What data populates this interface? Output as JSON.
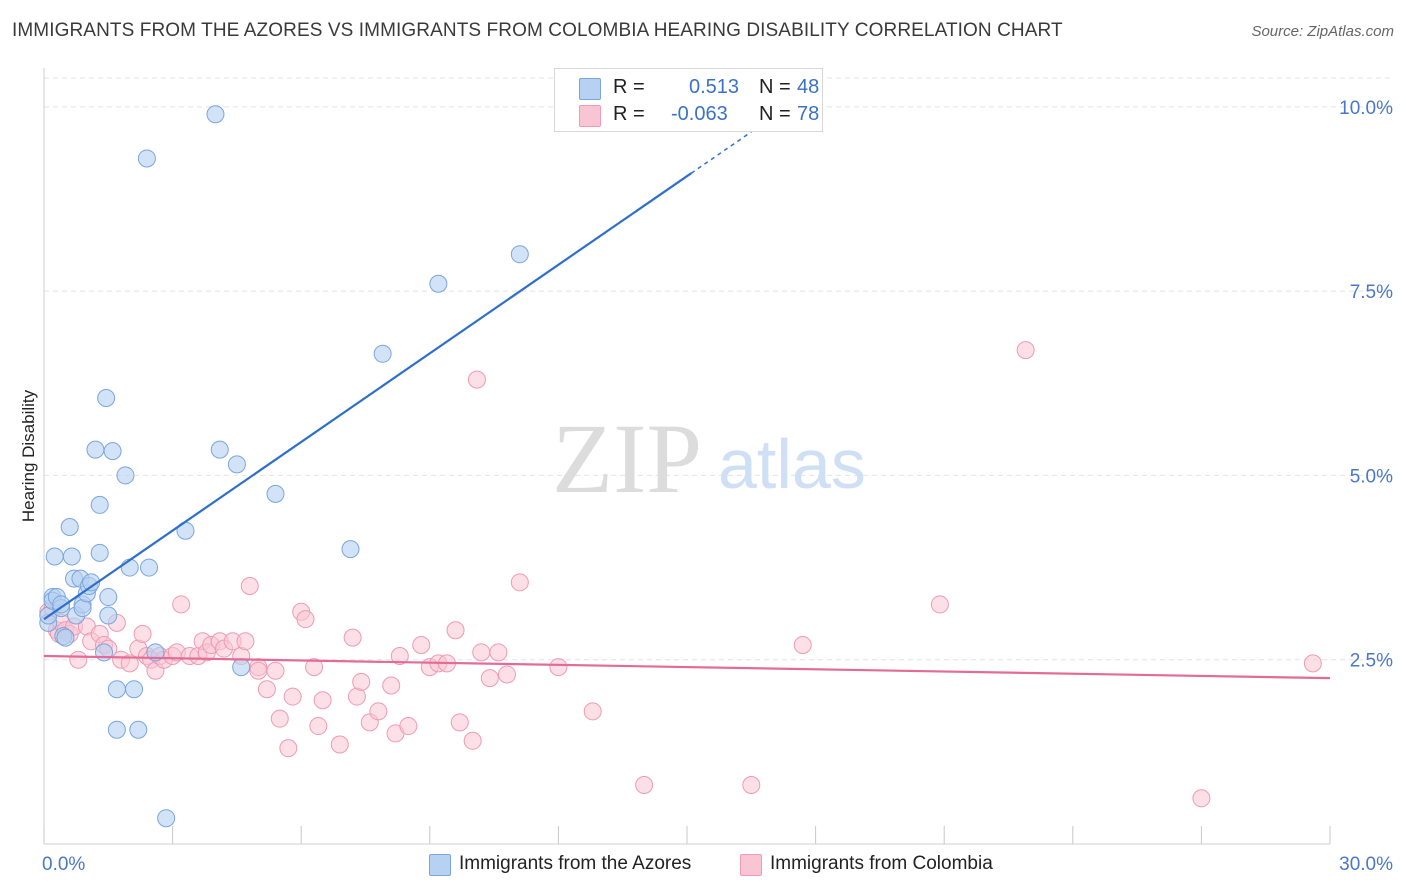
{
  "title": "IMMIGRANTS FROM THE AZORES VS IMMIGRANTS FROM COLOMBIA HEARING DISABILITY CORRELATION CHART",
  "source": "Source: ZipAtlas.com",
  "watermark": {
    "zip": "ZIP",
    "atlas": "atlas"
  },
  "legend": {
    "azores": {
      "r_label": "R =",
      "r_value": "0.513",
      "n_label": "N =",
      "n_value": "48"
    },
    "colombia": {
      "r_label": "R =",
      "r_value": "-0.063",
      "n_label": "N =",
      "n_value": "78"
    }
  },
  "bottom_legend": {
    "azores": "Immigrants from the Azores",
    "colombia": "Immigrants from Colombia"
  },
  "colors": {
    "azores_fill": "#b6d1f2",
    "azores_stroke": "#7aa6dc",
    "azores_line": "#2f6fcc",
    "colombia_fill": "#f9c5d4",
    "colombia_stroke": "#ee9bb5",
    "colombia_line": "#e36b96",
    "tick": "#4a78c8",
    "grid": "#e3e3e3"
  },
  "chart_data": {
    "type": "scatter",
    "ylabel": "Hearing Disability",
    "xlim": [
      0,
      30
    ],
    "ylim": [
      0,
      10.5
    ],
    "x_tick_labels": [
      {
        "v": 0,
        "label": "0.0%"
      },
      {
        "v": 30,
        "label": "30.0%"
      }
    ],
    "y_tick_labels": [
      {
        "v": 2.5,
        "label": "2.5%"
      },
      {
        "v": 5.0,
        "label": "5.0%"
      },
      {
        "v": 7.5,
        "label": "7.5%"
      },
      {
        "v": 10.0,
        "label": "10.0%"
      }
    ],
    "series": [
      {
        "name": "Immigrants from the Azores",
        "r": 0.513,
        "n": 48,
        "trend": {
          "x0": 0.0,
          "y0": 3.05,
          "x1": 15.1,
          "y1": 9.1,
          "dash_to_x": 16.5,
          "dash_to_y": 9.66
        },
        "points": [
          [
            0.1,
            3.0
          ],
          [
            0.1,
            3.1
          ],
          [
            0.2,
            3.35
          ],
          [
            0.2,
            3.3
          ],
          [
            0.25,
            3.9
          ],
          [
            0.3,
            3.35
          ],
          [
            0.4,
            3.2
          ],
          [
            0.4,
            3.25
          ],
          [
            0.45,
            2.82
          ],
          [
            0.5,
            2.8
          ],
          [
            0.6,
            4.3
          ],
          [
            0.65,
            3.9
          ],
          [
            0.7,
            3.6
          ],
          [
            0.75,
            3.1
          ],
          [
            0.85,
            3.6
          ],
          [
            0.9,
            3.25
          ],
          [
            0.9,
            3.2
          ],
          [
            1.0,
            3.4
          ],
          [
            1.05,
            3.5
          ],
          [
            1.1,
            3.55
          ],
          [
            1.2,
            5.35
          ],
          [
            1.3,
            4.6
          ],
          [
            1.3,
            3.95
          ],
          [
            1.4,
            2.6
          ],
          [
            1.45,
            6.05
          ],
          [
            1.5,
            3.1
          ],
          [
            1.5,
            3.35
          ],
          [
            1.6,
            5.33
          ],
          [
            1.7,
            2.1
          ],
          [
            1.7,
            1.55
          ],
          [
            1.9,
            5.0
          ],
          [
            2.0,
            3.75
          ],
          [
            2.1,
            2.1
          ],
          [
            2.2,
            1.55
          ],
          [
            2.4,
            9.3
          ],
          [
            2.45,
            3.75
          ],
          [
            2.6,
            2.6
          ],
          [
            2.85,
            0.35
          ],
          [
            3.3,
            4.25
          ],
          [
            4.0,
            9.9
          ],
          [
            4.1,
            5.35
          ],
          [
            4.5,
            5.15
          ],
          [
            4.6,
            2.4
          ],
          [
            5.4,
            4.75
          ],
          [
            7.15,
            4.0
          ],
          [
            7.9,
            6.65
          ],
          [
            9.2,
            7.6
          ],
          [
            11.1,
            8.0
          ]
        ]
      },
      {
        "name": "Immigrants from Colombia",
        "r": -0.063,
        "n": 78,
        "trend": {
          "x0": 0.0,
          "y0": 2.55,
          "x1": 30.0,
          "y1": 2.25
        },
        "points": [
          [
            0.1,
            3.15
          ],
          [
            0.2,
            3.2
          ],
          [
            0.3,
            2.9
          ],
          [
            0.35,
            2.85
          ],
          [
            0.4,
            3.0
          ],
          [
            0.5,
            2.9
          ],
          [
            0.6,
            2.85
          ],
          [
            0.7,
            2.95
          ],
          [
            0.8,
            2.5
          ],
          [
            1.0,
            2.95
          ],
          [
            1.1,
            2.75
          ],
          [
            1.3,
            2.85
          ],
          [
            1.4,
            2.7
          ],
          [
            1.5,
            2.65
          ],
          [
            1.7,
            3.0
          ],
          [
            1.8,
            2.5
          ],
          [
            2.0,
            2.45
          ],
          [
            2.2,
            2.65
          ],
          [
            2.3,
            2.85
          ],
          [
            2.4,
            2.55
          ],
          [
            2.5,
            2.5
          ],
          [
            2.6,
            2.35
          ],
          [
            2.7,
            2.55
          ],
          [
            2.8,
            2.5
          ],
          [
            3.0,
            2.55
          ],
          [
            3.1,
            2.6
          ],
          [
            3.2,
            3.25
          ],
          [
            3.4,
            2.55
          ],
          [
            3.6,
            2.55
          ],
          [
            3.7,
            2.75
          ],
          [
            3.8,
            2.6
          ],
          [
            3.9,
            2.7
          ],
          [
            4.1,
            2.75
          ],
          [
            4.2,
            2.65
          ],
          [
            4.4,
            2.75
          ],
          [
            4.6,
            2.55
          ],
          [
            4.7,
            2.75
          ],
          [
            4.8,
            3.5
          ],
          [
            5.0,
            2.4
          ],
          [
            5.0,
            2.35
          ],
          [
            5.2,
            2.1
          ],
          [
            5.4,
            2.35
          ],
          [
            5.5,
            1.7
          ],
          [
            5.7,
            1.3
          ],
          [
            5.8,
            2.0
          ],
          [
            6.0,
            3.15
          ],
          [
            6.1,
            3.05
          ],
          [
            6.3,
            2.4
          ],
          [
            6.4,
            1.6
          ],
          [
            6.5,
            1.95
          ],
          [
            6.9,
            1.35
          ],
          [
            7.2,
            2.8
          ],
          [
            7.3,
            2.0
          ],
          [
            7.4,
            2.2
          ],
          [
            7.6,
            1.65
          ],
          [
            7.8,
            1.8
          ],
          [
            8.1,
            2.15
          ],
          [
            8.2,
            1.5
          ],
          [
            8.3,
            2.55
          ],
          [
            8.5,
            1.6
          ],
          [
            8.8,
            2.7
          ],
          [
            9.0,
            2.4
          ],
          [
            9.2,
            2.45
          ],
          [
            9.4,
            2.45
          ],
          [
            9.6,
            2.9
          ],
          [
            9.7,
            1.65
          ],
          [
            10.0,
            1.4
          ],
          [
            10.2,
            2.6
          ],
          [
            10.4,
            2.25
          ],
          [
            10.6,
            2.6
          ],
          [
            10.8,
            2.3
          ],
          [
            11.1,
            3.55
          ],
          [
            12.0,
            2.4
          ],
          [
            12.8,
            1.8
          ],
          [
            14.0,
            0.8
          ],
          [
            16.5,
            0.8
          ],
          [
            27.0,
            0.62
          ],
          [
            29.6,
            2.45
          ]
        ],
        "extra_points": [
          [
            10.1,
            6.3
          ],
          [
            17.7,
            2.7
          ],
          [
            20.9,
            3.25
          ],
          [
            22.9,
            6.7
          ]
        ]
      }
    ]
  }
}
